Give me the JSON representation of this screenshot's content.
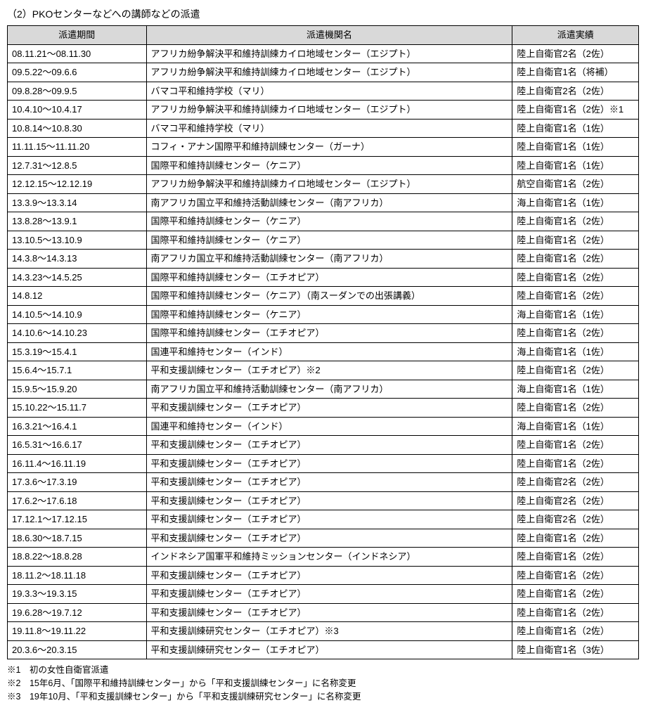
{
  "title": "（2）PKOセンターなどへの講師などの派遣",
  "columns": [
    "派遣期間",
    "派遣機関名",
    "派遣実績"
  ],
  "rows": [
    [
      "08.11.21～08.11.30",
      "アフリカ紛争解決平和維持訓練カイロ地域センター（エジプト）",
      "陸上自衛官2名（2佐）"
    ],
    [
      "09.5.22～09.6.6",
      "アフリカ紛争解決平和維持訓練カイロ地域センター（エジプト）",
      "陸上自衛官1名（将補）"
    ],
    [
      "09.8.28～09.9.5",
      "バマコ平和維持学校（マリ）",
      "陸上自衛官2名（2佐）"
    ],
    [
      "10.4.10～10.4.17",
      "アフリカ紛争解決平和維持訓練カイロ地域センター（エジプト）",
      "陸上自衛官1名（2佐）※1"
    ],
    [
      "10.8.14～10.8.30",
      "バマコ平和維持学校（マリ）",
      "陸上自衛官1名（1佐）"
    ],
    [
      "11.11.15～11.11.20",
      "コフィ・アナン国際平和維持訓練センター（ガーナ）",
      "陸上自衛官1名（1佐）"
    ],
    [
      "12.7.31～12.8.5",
      "国際平和維持訓練センター（ケニア）",
      "陸上自衛官1名（1佐）"
    ],
    [
      "12.12.15～12.12.19",
      "アフリカ紛争解決平和維持訓練カイロ地域センター（エジプト）",
      "航空自衛官1名（2佐）"
    ],
    [
      "13.3.9～13.3.14",
      "南アフリカ国立平和維持活動訓練センター（南アフリカ）",
      "海上自衛官1名（1佐）"
    ],
    [
      "13.8.28～13.9.1",
      "国際平和維持訓練センター（ケニア）",
      "陸上自衛官1名（2佐）"
    ],
    [
      "13.10.5～13.10.9",
      "国際平和維持訓練センター（ケニア）",
      "陸上自衛官1名（2佐）"
    ],
    [
      "14.3.8～14.3.13",
      "南アフリカ国立平和維持活動訓練センター（南アフリカ）",
      "陸上自衛官1名（2佐）"
    ],
    [
      "14.3.23～14.5.25",
      "国際平和維持訓練センター（エチオピア）",
      "陸上自衛官1名（2佐）"
    ],
    [
      "14.8.12",
      "国際平和維持訓練センター（ケニア）（南スーダンでの出張講義）",
      "陸上自衛官1名（2佐）"
    ],
    [
      "14.10.5～14.10.9",
      "国際平和維持訓練センター（ケニア）",
      "海上自衛官1名（1佐）"
    ],
    [
      "14.10.6～14.10.23",
      "国際平和維持訓練センター（エチオピア）",
      "陸上自衛官1名（2佐）"
    ],
    [
      "15.3.19～15.4.1",
      "国連平和維持センター（インド）",
      "海上自衛官1名（1佐）"
    ],
    [
      "15.6.4～15.7.1",
      "平和支援訓練センター（エチオピア）※2",
      "陸上自衛官1名（2佐）"
    ],
    [
      "15.9.5～15.9.20",
      "南アフリカ国立平和維持活動訓練センター（南アフリカ）",
      "海上自衛官1名（1佐）"
    ],
    [
      "15.10.22～15.11.7",
      "平和支援訓練センター（エチオピア）",
      "陸上自衛官1名（2佐）"
    ],
    [
      "16.3.21～16.4.1",
      "国連平和維持センター（インド）",
      "海上自衛官1名（1佐）"
    ],
    [
      "16.5.31～16.6.17",
      "平和支援訓練センター（エチオピア）",
      "陸上自衛官1名（2佐）"
    ],
    [
      "16.11.4～16.11.19",
      "平和支援訓練センター（エチオピア）",
      "陸上自衛官1名（2佐）"
    ],
    [
      "17.3.6～17.3.19",
      "平和支援訓練センター（エチオピア）",
      "陸上自衛官2名（2佐）"
    ],
    [
      "17.6.2～17.6.18",
      "平和支援訓練センター（エチオピア）",
      "陸上自衛官2名（2佐）"
    ],
    [
      "17.12.1～17.12.15",
      "平和支援訓練センター（エチオピア）",
      "陸上自衛官2名（2佐）"
    ],
    [
      "18.6.30～18.7.15",
      "平和支援訓練センター（エチオピア）",
      "陸上自衛官1名（2佐）"
    ],
    [
      "18.8.22～18.8.28",
      "インドネシア国軍平和維持ミッションセンター（インドネシア）",
      "陸上自衛官1名（2佐）"
    ],
    [
      "18.11.2～18.11.18",
      "平和支援訓練センター（エチオピア）",
      "陸上自衛官1名（2佐）"
    ],
    [
      "19.3.3～19.3.15",
      "平和支援訓練センター（エチオピア）",
      "陸上自衛官1名（2佐）"
    ],
    [
      "19.6.28～19.7.12",
      "平和支援訓練センター（エチオピア）",
      "陸上自衛官1名（2佐）"
    ],
    [
      "19.11.8～19.11.22",
      "平和支援訓練研究センター（エチオピア）※3",
      "陸上自衛官1名（2佐）"
    ],
    [
      "20.3.6～20.3.15",
      "平和支援訓練研究センター（エチオピア）",
      "陸上自衛官1名（3佐）"
    ]
  ],
  "notes": [
    "※1　初の女性自衛官派遣",
    "※2　15年6月、「国際平和維持訓練センター」から「平和支援訓練センター」に名称変更",
    "※3　19年10月、「平和支援訓練センター」から「平和支援訓練研究センター」に名称変更"
  ],
  "style": {
    "header_bg": "#d9d9d9",
    "border_color": "#000000",
    "font_size": 13,
    "title_font_size": 14
  }
}
